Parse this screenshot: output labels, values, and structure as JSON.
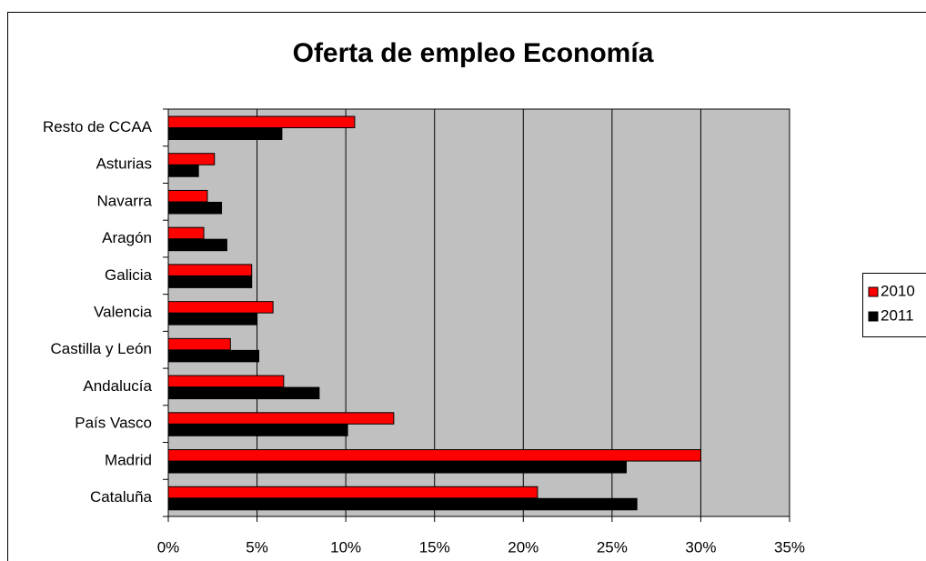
{
  "chart_data": {
    "type": "hbar",
    "title": "Oferta de empleo Economía",
    "categories": [
      "Resto de CCAA",
      "Asturias",
      "Navarra",
      "Aragón",
      "Galicia",
      "Valencia",
      "Castilla y León",
      "Andalucía",
      "País Vasco",
      "Madrid",
      "Cataluña"
    ],
    "series": [
      {
        "name": "2010",
        "color": "#ff0000",
        "values": [
          10.5,
          2.6,
          2.2,
          2.0,
          4.7,
          5.9,
          3.5,
          6.5,
          12.7,
          30.0,
          20.8
        ]
      },
      {
        "name": "2011",
        "color": "#000000",
        "values": [
          6.4,
          1.7,
          3.0,
          3.3,
          4.7,
          5.0,
          5.1,
          8.5,
          10.1,
          25.8,
          26.4
        ]
      }
    ],
    "xlim": [
      0,
      35
    ],
    "xticks": [
      {
        "value": 0,
        "label": "0%"
      },
      {
        "value": 5,
        "label": "5%"
      },
      {
        "value": 10,
        "label": "10%"
      },
      {
        "value": 15,
        "label": "15%"
      },
      {
        "value": 20,
        "label": "20%"
      },
      {
        "value": 25,
        "label": "25%"
      },
      {
        "value": 30,
        "label": "30%"
      },
      {
        "value": 35,
        "label": "35%"
      }
    ],
    "grid": true,
    "legend": "right",
    "plot_background": "#c0c0c0"
  }
}
